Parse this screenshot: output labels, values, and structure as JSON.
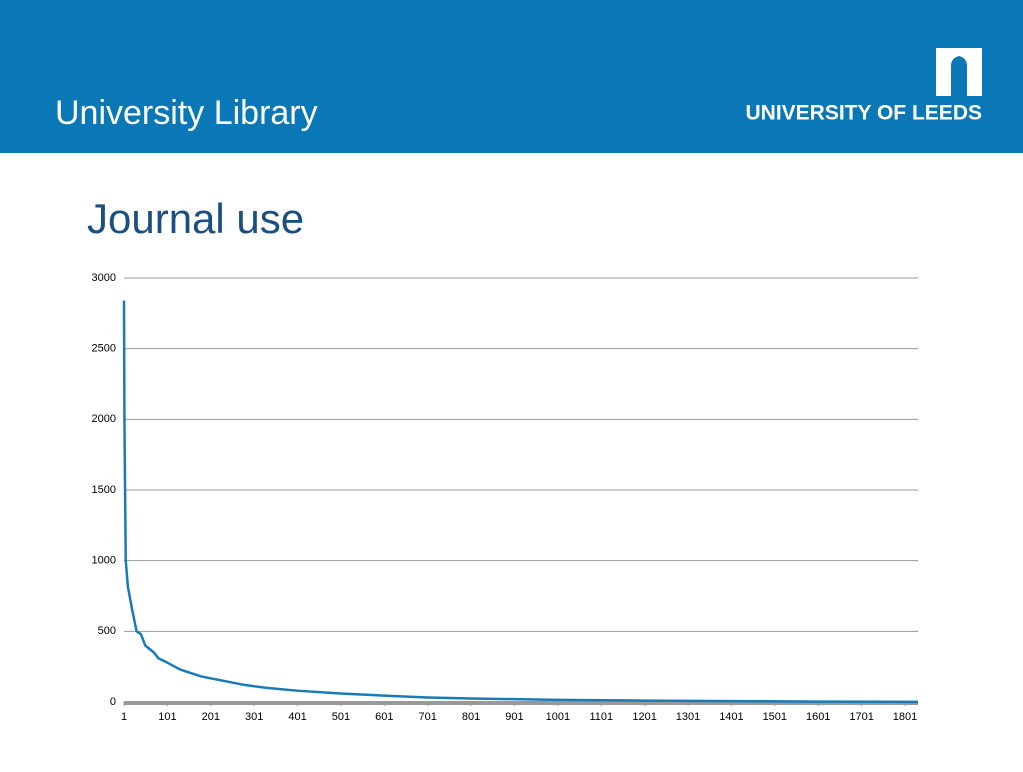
{
  "header": {
    "title": "University Library",
    "logo_text": "UNIVERSITY OF LEEDS"
  },
  "chart_data": {
    "type": "line",
    "title": "Journal use",
    "x": [
      1,
      2,
      3,
      5,
      10,
      20,
      30,
      40,
      50,
      70,
      80,
      100,
      130,
      150,
      180,
      230,
      280,
      330,
      400,
      500,
      600,
      700,
      800,
      900,
      1000,
      1200,
      1400,
      1600,
      1831
    ],
    "values": [
      2840,
      2000,
      1650,
      1000,
      815,
      650,
      500,
      480,
      400,
      350,
      310,
      280,
      230,
      210,
      180,
      150,
      120,
      100,
      80,
      60,
      45,
      32,
      25,
      20,
      15,
      10,
      6,
      3,
      1
    ],
    "color": "#1a7ab5",
    "xlim": [
      1,
      1831
    ],
    "xticks": [
      1,
      101,
      201,
      301,
      401,
      501,
      601,
      701,
      801,
      901,
      1001,
      1101,
      1201,
      1301,
      1401,
      1501,
      1601,
      1701,
      1801
    ],
    "ylim": [
      0,
      3000
    ],
    "yticks": [
      0,
      500,
      1000,
      1500,
      2000,
      2500,
      3000
    ],
    "grid": true
  }
}
